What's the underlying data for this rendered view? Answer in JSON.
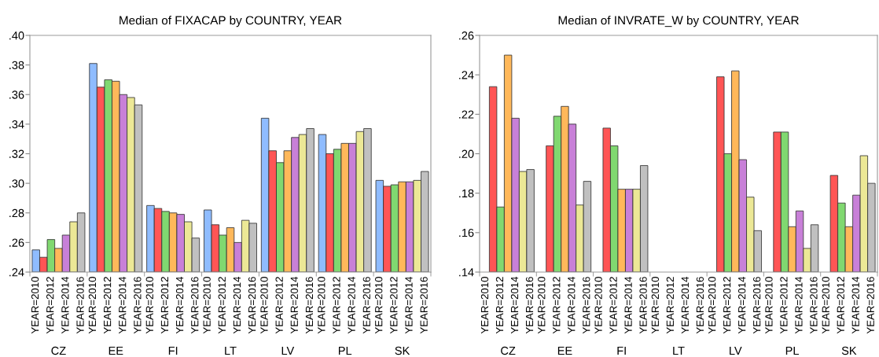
{
  "chart_data": [
    {
      "type": "bar",
      "title": "Median of FIXACAP by COUNTRY, YEAR",
      "categories": [
        "CZ",
        "EE",
        "FI",
        "LT",
        "LV",
        "PL",
        "SK"
      ],
      "series": [
        {
          "name": "YEAR=2010",
          "color": "#8fbcff",
          "values": [
            0.255,
            0.381,
            0.285,
            0.282,
            0.344,
            0.333,
            0.302
          ]
        },
        {
          "name": null,
          "color": "#ff5555",
          "values": [
            0.25,
            0.365,
            0.283,
            0.272,
            0.322,
            0.32,
            0.298
          ]
        },
        {
          "name": "YEAR=2012",
          "color": "#80d870",
          "values": [
            0.262,
            0.37,
            0.281,
            0.265,
            0.314,
            0.323,
            0.299
          ]
        },
        {
          "name": null,
          "color": "#ffb85a",
          "values": [
            0.256,
            0.369,
            0.28,
            0.27,
            0.322,
            0.327,
            0.301
          ]
        },
        {
          "name": "YEAR=2014",
          "color": "#c880d8",
          "values": [
            0.265,
            0.36,
            0.279,
            0.26,
            0.331,
            0.327,
            0.301
          ]
        },
        {
          "name": null,
          "color": "#ece896",
          "values": [
            0.274,
            0.358,
            0.274,
            0.275,
            0.333,
            0.335,
            0.302
          ]
        },
        {
          "name": "YEAR=2016",
          "color": "#c0c0c0",
          "values": [
            0.28,
            0.353,
            0.263,
            0.273,
            0.337,
            0.337,
            0.308
          ]
        }
      ],
      "ylim": [
        0.24,
        0.4
      ],
      "yticks": [
        {
          "value": 0.24,
          "label": ".24"
        },
        {
          "value": 0.26,
          "label": ".26"
        },
        {
          "value": 0.28,
          "label": ".28"
        },
        {
          "value": 0.3,
          "label": ".30"
        },
        {
          "value": 0.32,
          "label": ".32"
        },
        {
          "value": 0.34,
          "label": ".34"
        },
        {
          "value": 0.36,
          "label": ".36"
        },
        {
          "value": 0.38,
          "label": ".38"
        },
        {
          "value": 0.4,
          "label": ".40"
        }
      ]
    },
    {
      "type": "bar",
      "title": "Median of INVRATE_W by COUNTRY, YEAR",
      "categories": [
        "CZ",
        "EE",
        "FI",
        "LT",
        "LV",
        "PL",
        "SK"
      ],
      "series": [
        {
          "name": "YEAR=2010",
          "values": [
            null,
            null,
            null,
            null,
            null,
            null,
            null
          ]
        },
        {
          "name": null,
          "color": "#ff5555",
          "values": [
            0.234,
            0.204,
            0.213,
            null,
            0.239,
            0.211,
            0.189
          ]
        },
        {
          "name": "YEAR=2012",
          "color": "#80d870",
          "values": [
            0.173,
            0.219,
            0.204,
            null,
            0.2,
            0.211,
            0.175
          ]
        },
        {
          "name": null,
          "color": "#ffb85a",
          "values": [
            0.25,
            0.224,
            0.182,
            null,
            0.242,
            0.163,
            0.163
          ]
        },
        {
          "name": "YEAR=2014",
          "color": "#c880d8",
          "values": [
            0.218,
            0.215,
            0.182,
            null,
            0.197,
            0.171,
            0.179
          ]
        },
        {
          "name": null,
          "color": "#ece896",
          "values": [
            0.191,
            0.174,
            0.182,
            null,
            0.178,
            0.152,
            0.199
          ]
        },
        {
          "name": "YEAR=2016",
          "color": "#c0c0c0",
          "values": [
            0.192,
            0.186,
            0.194,
            null,
            0.161,
            0.164,
            0.185
          ]
        }
      ],
      "ylim": [
        0.14,
        0.26
      ],
      "yticks": [
        {
          "value": 0.14,
          "label": ".14"
        },
        {
          "value": 0.16,
          "label": ".16"
        },
        {
          "value": 0.18,
          "label": ".18"
        },
        {
          "value": 0.2,
          "label": ".20"
        },
        {
          "value": 0.22,
          "label": ".22"
        },
        {
          "value": 0.24,
          "label": ".24"
        },
        {
          "value": 0.26,
          "label": ".26"
        }
      ]
    }
  ]
}
